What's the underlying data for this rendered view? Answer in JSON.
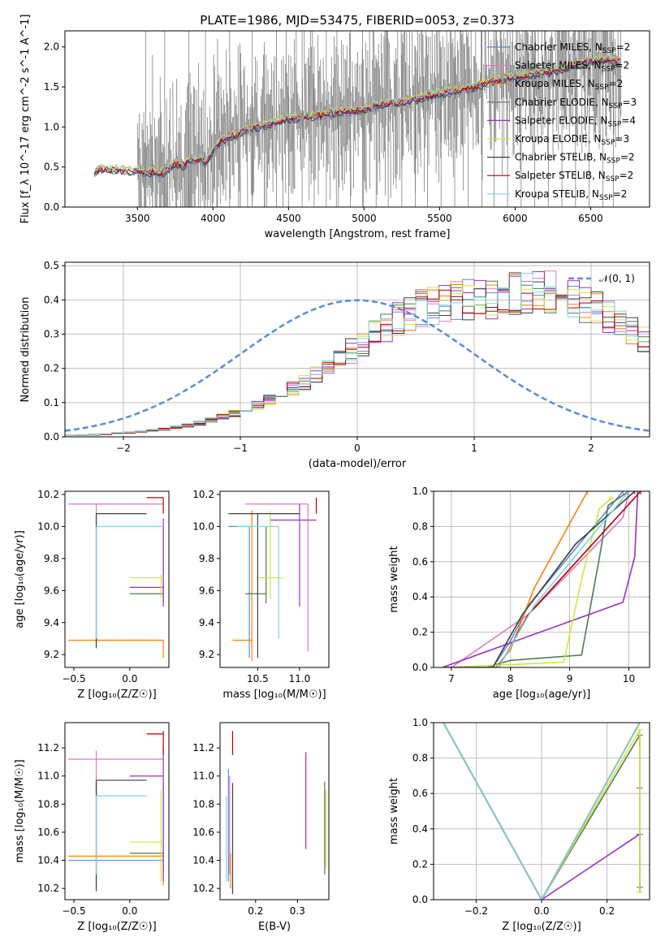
{
  "figure": {
    "title": "PLATE=1986, MJD=53475, FIBERID=0053, z=0.373"
  },
  "colors": {
    "data": "#808080",
    "chabrier_miles": "#5b8bd6",
    "salpeter_miles": "#e377c2",
    "kroupa_miles": "#ff7f0e",
    "chabrier_elodie": "#4f7a54",
    "salpeter_elodie": "#9832c2",
    "kroupa_elodie": "#cfe640",
    "chabrier_stelib": "#3f3f3f",
    "salpeter_stelib": "#b30000",
    "kroupa_stelib": "#7fd7e0",
    "gauss": "#5b8bd6"
  },
  "chart_data": [
    {
      "id": "spectrum",
      "type": "line",
      "xlabel": "wavelength [Angstrom, rest frame]",
      "ylabel": "Flux [f_λ 10^-17 erg cm^-2 s^-1 A^-1]",
      "xlim": [
        3020,
        6890
      ],
      "ylim": [
        0,
        2.2
      ],
      "xticks": [
        3500,
        4000,
        4500,
        5000,
        5500,
        6000,
        6500
      ],
      "yticks": [
        0.0,
        0.5,
        1.0,
        1.5,
        2.0
      ],
      "legend_position": "top-right",
      "legend": [
        {
          "key": "chabrier_miles",
          "label": "Chabrier MILES, N",
          "sub": "SSP",
          "suffix": "=2"
        },
        {
          "key": "salpeter_miles",
          "label": "Salpeter MILES, N",
          "sub": "SSP",
          "suffix": "=2"
        },
        {
          "key": "kroupa_miles",
          "label": "Kroupa MILES, N",
          "sub": "SSP",
          "suffix": "=2"
        },
        {
          "key": "chabrier_elodie",
          "label": "Chabrier ELODIE, N",
          "sub": "SSP",
          "suffix": "=3"
        },
        {
          "key": "salpeter_elodie",
          "label": "Salpeter ELODIE, N",
          "sub": "SSP",
          "suffix": "=4"
        },
        {
          "key": "kroupa_elodie",
          "label": "Kroupa ELODIE, N",
          "sub": "SSP",
          "suffix": "=3"
        },
        {
          "key": "chabrier_stelib",
          "label": "Chabrier STELIB, N",
          "sub": "SSP",
          "suffix": "=2"
        },
        {
          "key": "salpeter_stelib",
          "label": "Salpeter STELIB, N",
          "sub": "SSP",
          "suffix": "=2"
        },
        {
          "key": "kroupa_stelib",
          "label": "Kroupa STELIB, N",
          "sub": "SSP",
          "suffix": "=2"
        }
      ],
      "model_continuum": {
        "x": [
          3215,
          3250,
          3300,
          3350,
          3400,
          3450,
          3500,
          3550,
          3600,
          3650,
          3700,
          3750,
          3800,
          3850,
          3900,
          3950,
          4000,
          4050,
          4100,
          4150,
          4200,
          4300,
          4400,
          4500,
          4600,
          4700,
          4800,
          4900,
          5000,
          5100,
          5200,
          5300,
          5400,
          5500,
          5600,
          5700,
          5800,
          5900,
          6000,
          6100,
          6200,
          6300,
          6400,
          6500,
          6600,
          6700
        ],
        "y": [
          0.42,
          0.48,
          0.47,
          0.46,
          0.47,
          0.44,
          0.46,
          0.43,
          0.44,
          0.42,
          0.47,
          0.55,
          0.52,
          0.58,
          0.6,
          0.55,
          0.7,
          0.82,
          0.88,
          0.9,
          0.95,
          1.0,
          1.05,
          1.1,
          1.12,
          1.15,
          1.18,
          1.2,
          1.22,
          1.28,
          1.3,
          1.32,
          1.38,
          1.42,
          1.45,
          1.48,
          1.55,
          1.6,
          1.62,
          1.65,
          1.68,
          1.72,
          1.78,
          1.82,
          1.85,
          1.8
        ]
      },
      "data_range": [
        3500,
        6700
      ],
      "data_spikes": [
        [
          3555,
          2.2
        ],
        [
          3600,
          1.9
        ],
        [
          3680,
          2.2
        ],
        [
          3760,
          1.6
        ],
        [
          3840,
          2.2
        ],
        [
          3905,
          1.8
        ],
        [
          3950,
          2.2
        ],
        [
          4030,
          2.1
        ],
        [
          4110,
          2.2
        ],
        [
          4180,
          1.7
        ],
        [
          4260,
          2.2
        ],
        [
          4340,
          2.0
        ],
        [
          4420,
          2.2
        ],
        [
          4500,
          1.9
        ],
        [
          4590,
          2.2
        ],
        [
          4670,
          2.0
        ],
        [
          4750,
          2.2
        ],
        [
          4830,
          1.9
        ],
        [
          4910,
          2.2
        ],
        [
          4990,
          2.2
        ],
        [
          5080,
          1.8
        ],
        [
          5160,
          2.1
        ],
        [
          5250,
          1.9
        ],
        [
          5340,
          2.0
        ],
        [
          5420,
          1.9
        ],
        [
          5510,
          2.0
        ],
        [
          5600,
          2.0
        ],
        [
          5690,
          2.0
        ],
        [
          5780,
          2.2
        ],
        [
          5860,
          2.1
        ],
        [
          5950,
          2.2
        ],
        [
          6040,
          2.1
        ],
        [
          6130,
          2.2
        ],
        [
          6220,
          2.0
        ],
        [
          6310,
          2.2
        ],
        [
          6400,
          2.1
        ],
        [
          6490,
          2.2
        ],
        [
          6580,
          2.2
        ],
        [
          6650,
          2.2
        ]
      ]
    },
    {
      "id": "residuals",
      "type": "line",
      "xlabel": "(data-model)/error",
      "ylabel": "Normed distribution",
      "xlim": [
        -2.5,
        2.5
      ],
      "ylim": [
        0,
        0.51
      ],
      "xticks": [
        -2,
        -1,
        0,
        1,
        2
      ],
      "yticks": [
        0.0,
        0.1,
        0.2,
        0.3,
        0.4,
        0.5
      ],
      "legend": [
        {
          "label": "𝒩(0, 1)"
        }
      ],
      "legend_position": "top-right",
      "bin_width": 0.1,
      "hist_base": [
        0.004,
        0.005,
        0.006,
        0.008,
        0.01,
        0.012,
        0.015,
        0.018,
        0.022,
        0.027,
        0.033,
        0.04,
        0.048,
        0.057,
        0.068,
        0.08,
        0.093,
        0.108,
        0.125,
        0.143,
        0.162,
        0.183,
        0.205,
        0.228,
        0.252,
        0.276,
        0.3,
        0.322,
        0.343,
        0.36,
        0.375,
        0.385,
        0.393,
        0.398,
        0.4,
        0.402,
        0.405,
        0.41,
        0.418,
        0.425,
        0.428,
        0.425,
        0.418,
        0.405,
        0.39,
        0.372,
        0.352,
        0.33,
        0.308,
        0.286
      ]
    },
    {
      "id": "age_vs_z",
      "type": "scatter",
      "xlabel": "Z [log₁₀(Z/Z☉)]",
      "ylabel": "age  [log₁₀(age/yr)]",
      "xlim": [
        -0.58,
        0.35
      ],
      "ylim": [
        9.12,
        10.22
      ],
      "xticks": [
        -0.5,
        0.0
      ],
      "yticks": [
        9.2,
        9.4,
        9.6,
        9.8,
        10.0,
        10.2
      ]
    },
    {
      "id": "age_vs_mass",
      "type": "scatter",
      "xlabel": "mass [log₁₀(M/M☉)]",
      "xlim": [
        10.05,
        11.35
      ],
      "ylim": [
        9.12,
        10.22
      ],
      "xticks": [
        10.5,
        11.0
      ],
      "yticks": [
        9.2,
        9.4,
        9.6,
        9.8,
        10.0,
        10.2
      ]
    },
    {
      "id": "weight_vs_age",
      "type": "line",
      "xlabel": "age  [log₁₀(age/yr)]",
      "ylabel": "mass weight",
      "xlim": [
        6.7,
        10.35
      ],
      "ylim": [
        0,
        1
      ],
      "xticks": [
        7,
        8,
        9,
        10
      ],
      "yticks": [
        0.0,
        0.2,
        0.4,
        0.6,
        0.8,
        1.0
      ]
    },
    {
      "id": "mass_vs_z",
      "type": "scatter",
      "xlabel": "Z [log₁₀(Z/Z☉)]",
      "ylabel": "mass [log₁₀(M/M☉)]",
      "xlim": [
        -0.58,
        0.35
      ],
      "ylim": [
        10.12,
        11.38
      ],
      "xticks": [
        -0.5,
        0.0
      ],
      "yticks": [
        10.2,
        10.4,
        10.6,
        10.8,
        11.0,
        11.2
      ]
    },
    {
      "id": "mass_vs_ebv",
      "type": "scatter",
      "xlabel": "E(B-V)",
      "xlim": [
        0.115,
        0.375
      ],
      "ylim": [
        10.12,
        11.38
      ],
      "xticks": [
        0.2,
        0.3
      ],
      "yticks": [
        10.2,
        10.4,
        10.6,
        10.8,
        11.0,
        11.2
      ]
    },
    {
      "id": "weight_vs_z",
      "type": "line",
      "xlabel": "Z [log₁₀(Z/Z☉)]",
      "ylabel": "mass weight",
      "xlim": [
        -0.33,
        0.33
      ],
      "ylim": [
        0,
        1
      ],
      "xticks": [
        -0.2,
        0.0,
        0.2
      ],
      "yticks": [
        0.0,
        0.2,
        0.4,
        0.6,
        0.8,
        1.0
      ]
    }
  ],
  "fits": [
    {
      "key": "chabrier_miles",
      "age_range": [
        9.29,
        10.0
      ],
      "age_x": -0.3,
      "age_hline": [
        -0.3,
        0.3,
        9.29
      ],
      "ma_x": 10.4,
      "ma_range": [
        9.18,
        10.0
      ],
      "ma_h": [
        10.15,
        10.4,
        10.0
      ],
      "wa": [
        [
          6.95,
          0.0
        ],
        [
          7.7,
          0.0
        ],
        [
          8.0,
          0.15
        ],
        [
          8.3,
          0.35
        ],
        [
          9.9,
          1.0
        ]
      ],
      "mz_h": [
        -0.55,
        0.3,
        10.4
      ],
      "mz_v": [
        -0.3,
        10.2,
        10.95
      ],
      "me": [
        0.135,
        10.25,
        11.05
      ],
      "wz": [
        [
          -0.3,
          1.0
        ],
        [
          0.0,
          0.0
        ],
        [
          0.3,
          1.0
        ]
      ]
    },
    {
      "key": "salpeter_miles",
      "age_range": [
        9.25,
        10.14
      ],
      "age_x": -0.3,
      "age_hline": [
        -0.55,
        0.3,
        10.14
      ],
      "ma_x": 11.1,
      "ma_range": [
        9.22,
        10.14
      ],
      "ma_h": [
        10.35,
        11.1,
        10.14
      ],
      "wa": [
        [
          6.95,
          0.0
        ],
        [
          7.0,
          0.0
        ],
        [
          8.3,
          0.3
        ],
        [
          9.9,
          0.85
        ],
        [
          10.0,
          1.0
        ]
      ],
      "mz_h": [
        -0.55,
        0.3,
        11.12
      ],
      "mz_v": [
        -0.3,
        10.3,
        11.18
      ],
      "me": [
        0.138,
        10.3,
        11.0
      ],
      "wz": [
        [
          -0.3,
          1.0
        ],
        [
          0.0,
          0.0
        ],
        [
          0.3,
          1.0
        ]
      ]
    },
    {
      "key": "kroupa_miles",
      "age_range": [
        9.18,
        9.29
      ],
      "age_x": 0.3,
      "age_hline": [
        -0.55,
        0.3,
        9.29
      ],
      "ma_x": 10.43,
      "ma_range": [
        9.16,
        10.1
      ],
      "ma_h": [
        10.2,
        10.43,
        9.29
      ],
      "wa": [
        [
          6.85,
          0.0
        ],
        [
          7.75,
          0.0
        ],
        [
          8.0,
          0.1
        ],
        [
          8.4,
          0.45
        ],
        [
          9.3,
          1.0
        ]
      ],
      "mz_h": [
        -0.55,
        0.3,
        10.43
      ],
      "mz_v": [
        0.3,
        10.22,
        10.45
      ],
      "me": [
        0.14,
        10.2,
        10.45
      ],
      "wz": [
        [
          -0.3,
          1.0
        ],
        [
          0.0,
          0.0
        ],
        [
          0.3,
          1.0
        ]
      ]
    },
    {
      "key": "chabrier_elodie",
      "age_range": [
        9.52,
        10.0
      ],
      "age_x": 0.3,
      "age_hline": [
        0.0,
        0.3,
        9.58
      ],
      "ma_x": 10.6,
      "ma_range": [
        9.52,
        10.0
      ],
      "ma_h": [
        10.35,
        10.6,
        9.58
      ],
      "wa": [
        [
          6.95,
          0.0
        ],
        [
          7.6,
          0.0
        ],
        [
          8.0,
          0.04
        ],
        [
          9.2,
          0.07
        ],
        [
          9.5,
          0.62
        ],
        [
          9.65,
          0.92
        ],
        [
          10.0,
          1.0
        ]
      ],
      "mz_h": [
        0.0,
        0.3,
        10.45
      ],
      "mz_v": [
        0.3,
        10.3,
        10.96
      ],
      "me": [
        0.365,
        10.3,
        10.96
      ],
      "wz": [
        [
          -0.3,
          1.0
        ],
        [
          0.0,
          0.0
        ],
        [
          0.3,
          0.93
        ],
        [
          0.3,
          0.07
        ]
      ]
    },
    {
      "key": "salpeter_elodie",
      "age_range": [
        9.5,
        10.05
      ],
      "age_x": 0.3,
      "age_hline": [
        0.0,
        0.3,
        9.62
      ],
      "ma_x": 11.0,
      "ma_range": [
        9.5,
        10.14
      ],
      "ma_h": [
        10.65,
        11.2,
        10.04
      ],
      "wa": [
        [
          6.85,
          0.0
        ],
        [
          9.9,
          0.37
        ],
        [
          10.1,
          0.63
        ],
        [
          10.15,
          1.0
        ]
      ],
      "mz_h": [
        0.0,
        0.3,
        11.0
      ],
      "mz_v": [
        0.3,
        10.25,
        11.2
      ],
      "me": [
        0.32,
        10.48,
        11.17
      ],
      "wz": [
        [
          -0.3,
          1.0
        ],
        [
          0.0,
          0.0
        ],
        [
          0.3,
          0.37
        ],
        [
          0.3,
          0.63
        ]
      ]
    },
    {
      "key": "kroupa_elodie",
      "age_range": [
        9.55,
        9.7
      ],
      "age_x": 0.28,
      "age_hline": [
        0.0,
        0.3,
        9.68
      ],
      "ma_x": 10.65,
      "ma_range": [
        9.55,
        10.1
      ],
      "ma_h": [
        10.5,
        10.8,
        9.68
      ],
      "wa": [
        [
          6.9,
          0.0
        ],
        [
          8.9,
          0.03
        ],
        [
          9.2,
          0.5
        ],
        [
          9.5,
          0.9
        ],
        [
          9.7,
          0.96
        ]
      ],
      "mz_h": [
        0.0,
        0.3,
        10.53
      ],
      "mz_v": [
        0.28,
        10.25,
        10.9
      ],
      "me": [
        0.368,
        10.35,
        10.9
      ],
      "wz": [
        [
          -0.3,
          1.0
        ],
        [
          0.0,
          0.0
        ],
        [
          0.3,
          0.96
        ],
        [
          0.3,
          0.04
        ]
      ]
    },
    {
      "key": "chabrier_stelib",
      "age_range": [
        9.24,
        10.08
      ],
      "age_x": -0.3,
      "age_hline": [
        -0.3,
        0.15,
        10.08
      ],
      "ma_x": 10.5,
      "ma_range": [
        9.18,
        10.08
      ],
      "ma_h": [
        10.15,
        11.0,
        10.08
      ],
      "wa": [
        [
          6.9,
          0.0
        ],
        [
          7.7,
          0.0
        ],
        [
          8.2,
          0.3
        ],
        [
          9.1,
          0.7
        ],
        [
          10.1,
          1.0
        ]
      ],
      "mz_h": [
        -0.3,
        0.15,
        10.97
      ],
      "mz_v": [
        -0.3,
        10.18,
        10.97
      ],
      "me": [
        0.145,
        10.16,
        10.95
      ],
      "wz": [
        [
          -0.3,
          1.0
        ],
        [
          0.0,
          0.0
        ],
        [
          0.3,
          1.0
        ]
      ]
    },
    {
      "key": "salpeter_stelib",
      "age_range": [
        10.08,
        10.18
      ],
      "age_x": 0.3,
      "age_hline": [
        0.15,
        0.3,
        10.18
      ],
      "ma_x": 11.2,
      "ma_range": [
        10.08,
        10.18
      ],
      "ma_h": [
        11.2,
        11.2,
        10.18
      ],
      "wa": [
        [
          6.9,
          0.0
        ],
        [
          7.8,
          0.0
        ],
        [
          8.3,
          0.3
        ],
        [
          10.2,
          1.0
        ]
      ],
      "mz_h": [
        0.15,
        0.3,
        11.3
      ],
      "mz_v": [
        0.3,
        11.15,
        11.32
      ],
      "me": [
        0.145,
        11.15,
        11.32
      ],
      "wz": [
        [
          -0.3,
          1.0
        ],
        [
          0.0,
          0.0
        ],
        [
          0.3,
          1.0
        ]
      ]
    },
    {
      "key": "kroupa_stelib",
      "age_range": [
        9.3,
        10.0
      ],
      "age_x": -0.3,
      "age_hline": [
        -0.3,
        0.3,
        10.0
      ],
      "ma_x": 10.75,
      "ma_range": [
        9.3,
        10.0
      ],
      "ma_h": [
        10.25,
        10.75,
        10.0
      ],
      "wa": [
        [
          6.9,
          0.0
        ],
        [
          7.8,
          0.0
        ],
        [
          8.4,
          0.35
        ],
        [
          10.0,
          1.0
        ]
      ],
      "mz_h": [
        -0.3,
        0.15,
        10.86
      ],
      "mz_v": [
        -0.3,
        10.3,
        10.86
      ],
      "me": [
        0.13,
        10.25,
        10.86
      ],
      "wz": [
        [
          -0.3,
          1.0
        ],
        [
          0.0,
          0.0
        ],
        [
          0.3,
          1.0
        ]
      ]
    }
  ]
}
